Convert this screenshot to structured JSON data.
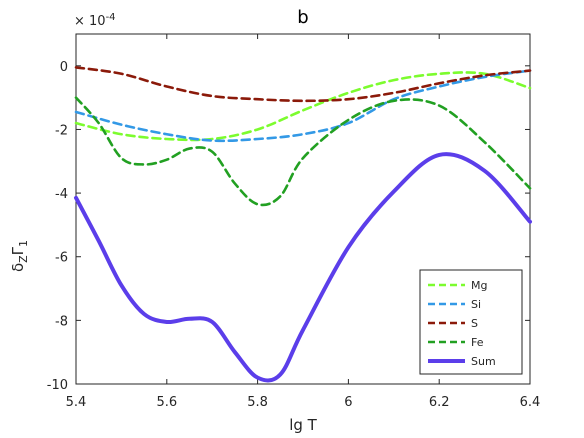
{
  "chart_data": {
    "type": "line",
    "title": "b",
    "xlabel": "lg T",
    "ylabel_main": "δ",
    "ylabel_sub": "Z",
    "ylabel_main2": "Γ",
    "ylabel_sub2": "1",
    "exponent_label_prefix": "× 10",
    "exponent_label_power": "-4",
    "xlim": [
      5.4,
      6.4
    ],
    "ylim": [
      -10,
      1
    ],
    "xticks": [
      5.4,
      5.6,
      5.8,
      6,
      6.2,
      6.4
    ],
    "xtick_labels": [
      "5.4",
      "5.6",
      "5.8",
      "6",
      "6.2",
      "6.4"
    ],
    "yticks": [
      -10,
      -8,
      -6,
      -4,
      -2,
      0
    ],
    "ytick_labels": [
      "-10",
      "-8",
      "-6",
      "-4",
      "-2",
      "0"
    ],
    "legend_position": "bottom-right",
    "series": [
      {
        "name": "Mg",
        "color": "#7CFC2E",
        "style": "dashed",
        "x": [
          5.4,
          5.5,
          5.6,
          5.7,
          5.8,
          5.9,
          6.0,
          6.1,
          6.2,
          6.3,
          6.4
        ],
        "y": [
          -1.8,
          -2.15,
          -2.3,
          -2.3,
          -2.0,
          -1.4,
          -0.85,
          -0.45,
          -0.25,
          -0.25,
          -0.7
        ]
      },
      {
        "name": "Si",
        "color": "#3399E6",
        "style": "dashed",
        "x": [
          5.4,
          5.5,
          5.6,
          5.7,
          5.8,
          5.9,
          6.0,
          6.1,
          6.2,
          6.3,
          6.4
        ],
        "y": [
          -1.45,
          -1.85,
          -2.15,
          -2.35,
          -2.3,
          -2.15,
          -1.8,
          -1.05,
          -0.65,
          -0.35,
          -0.15
        ]
      },
      {
        "name": "S",
        "color": "#8B1A0A",
        "style": "dashed",
        "x": [
          5.4,
          5.5,
          5.6,
          5.7,
          5.8,
          5.9,
          6.0,
          6.1,
          6.2,
          6.3,
          6.4
        ],
        "y": [
          -0.05,
          -0.25,
          -0.65,
          -0.95,
          -1.05,
          -1.1,
          -1.05,
          -0.85,
          -0.55,
          -0.3,
          -0.15
        ]
      },
      {
        "name": "Fe",
        "color": "#22A022",
        "style": "dashed",
        "x": [
          5.4,
          5.45,
          5.5,
          5.55,
          5.6,
          5.65,
          5.7,
          5.75,
          5.8,
          5.85,
          5.9,
          6.0,
          6.1,
          6.2,
          6.3,
          6.4
        ],
        "y": [
          -1.0,
          -1.8,
          -2.9,
          -3.1,
          -2.95,
          -2.6,
          -2.7,
          -3.7,
          -4.35,
          -4.1,
          -2.9,
          -1.7,
          -1.1,
          -1.25,
          -2.4,
          -3.85
        ]
      },
      {
        "name": "Sum",
        "color": "#5B3EEA",
        "style": "solid",
        "x": [
          5.4,
          5.45,
          5.5,
          5.55,
          5.6,
          5.65,
          5.7,
          5.75,
          5.8,
          5.85,
          5.9,
          6.0,
          6.1,
          6.2,
          6.3,
          6.4
        ],
        "y": [
          -4.15,
          -5.5,
          -6.9,
          -7.8,
          -8.05,
          -7.95,
          -8.05,
          -9.0,
          -9.8,
          -9.7,
          -8.3,
          -5.7,
          -3.95,
          -2.8,
          -3.3,
          -4.9
        ]
      }
    ]
  }
}
